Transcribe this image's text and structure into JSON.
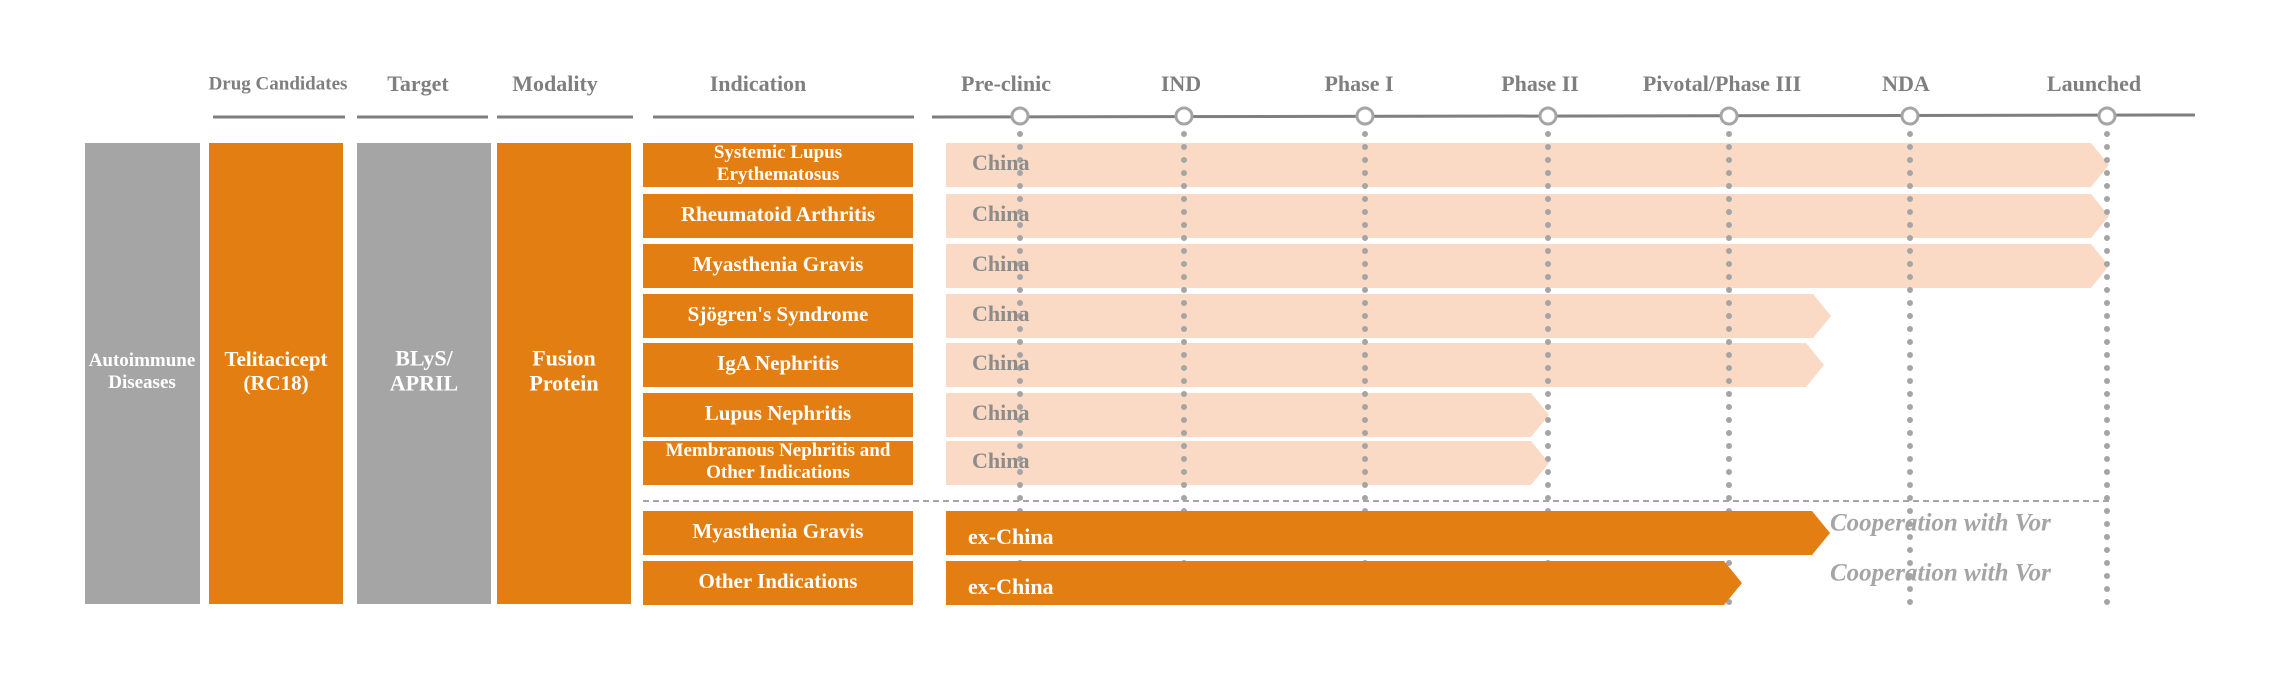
{
  "headers": {
    "drug_candidates": "Drug Candidates",
    "target": "Target",
    "modality": "Modality",
    "indication": "Indication"
  },
  "stages": [
    "Pre-clinic",
    "IND",
    "Phase I",
    "Phase II",
    "Pivotal/Phase III",
    "NDA",
    "Launched"
  ],
  "area": "Autoimmune Diseases",
  "drug": "Telitacicept (RC18)",
  "target": "BLyS/ APRIL",
  "modality": "Fusion Protein",
  "rows": [
    {
      "indication": "Systemic Lupus Erythematosus",
      "region": "China"
    },
    {
      "indication": "Rheumatoid Arthritis",
      "region": "China"
    },
    {
      "indication": "Myasthenia Gravis",
      "region": "China"
    },
    {
      "indication": "Sjögren's Syndrome",
      "region": "China"
    },
    {
      "indication": "IgA Nephritis",
      "region": "China"
    },
    {
      "indication": "Lupus Nephritis",
      "region": "China"
    },
    {
      "indication": "Membranous Nephritis and Other Indications",
      "region": "China"
    },
    {
      "indication": "Myasthenia Gravis",
      "region": "ex-China",
      "note": "Cooperation with Vor"
    },
    {
      "indication": "Other Indications",
      "region": "ex-China",
      "note": "Cooperation with Vor"
    }
  ]
}
